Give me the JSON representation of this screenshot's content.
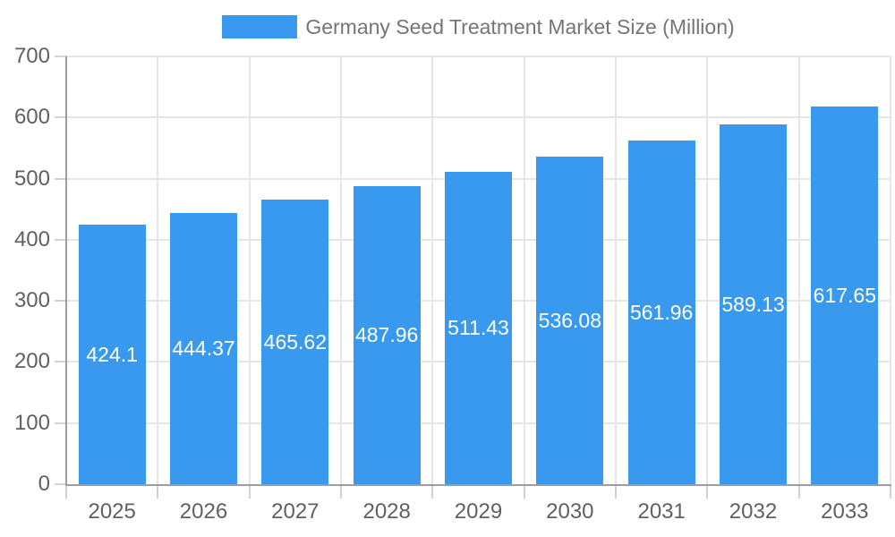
{
  "chart_data": {
    "type": "bar",
    "legend": "Germany Seed Treatment Market Size (Million)",
    "legend_position": "top",
    "categories": [
      "2025",
      "2026",
      "2027",
      "2028",
      "2029",
      "2030",
      "2031",
      "2032",
      "2033"
    ],
    "values": [
      424.1,
      444.37,
      465.62,
      487.96,
      511.43,
      536.08,
      561.96,
      589.13,
      617.65
    ],
    "value_labels": [
      "424.1",
      "444.37",
      "465.62",
      "487.96",
      "511.43",
      "536.08",
      "561.96",
      "589.13",
      "617.65"
    ],
    "xlabel": "",
    "ylabel": "",
    "ylim": [
      0,
      700
    ],
    "yticks": [
      "0",
      "100",
      "200",
      "300",
      "400",
      "500",
      "600",
      "700"
    ],
    "grid": true,
    "colors": {
      "bar": "#3999EF",
      "axis_line": "#9e9e9e",
      "gridline": "#e6e6e6",
      "tick_mark": "#d2d2d2",
      "axis_label_text": "#616161",
      "legend_text": "#757575",
      "value_label_text": "#ffffff",
      "background": "#ffffff"
    }
  }
}
